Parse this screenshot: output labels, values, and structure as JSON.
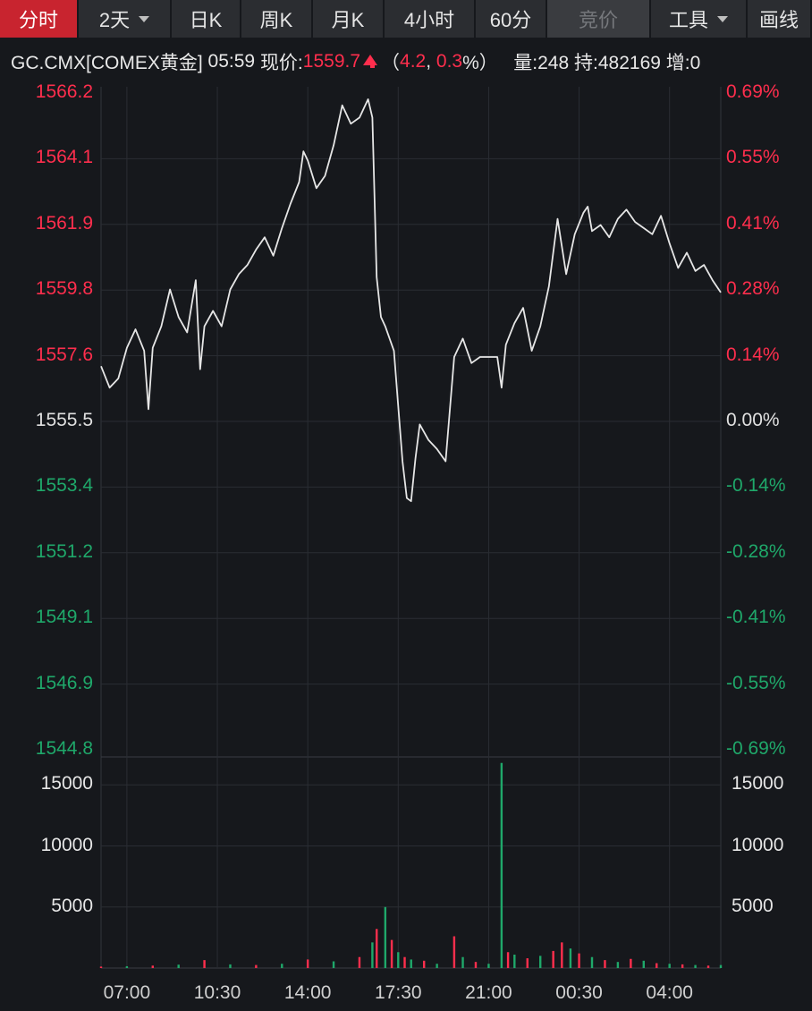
{
  "toolbar": {
    "tabs": [
      {
        "label": "分时",
        "state": "active",
        "width": 88
      },
      {
        "label": "2天",
        "state": "normal",
        "dropdown": true,
        "width": 104
      },
      {
        "label": "日K",
        "state": "normal",
        "width": 78
      },
      {
        "label": "周K",
        "state": "normal",
        "width": 80
      },
      {
        "label": "月K",
        "state": "normal",
        "width": 80
      },
      {
        "label": "4小时",
        "state": "normal",
        "width": 102
      },
      {
        "label": "60分",
        "state": "normal",
        "width": 80
      },
      {
        "label": "竞价",
        "state": "disabled",
        "width": 116
      },
      {
        "label": "工具",
        "state": "normal",
        "dropdown": true,
        "width": 108
      },
      {
        "label": "画线",
        "state": "normal",
        "width": 72
      }
    ]
  },
  "info": {
    "symbol": "GC.CMX[COMEX黄金]",
    "time": "05:59",
    "price_label": "现价:",
    "price": "1559.7",
    "change": "4.2",
    "change_pct": "0.3",
    "volume": "量:248",
    "hold": "持:482169",
    "increase": "增:0"
  },
  "colors": {
    "up": "#ff2e4d",
    "down": "#1fa86a",
    "flat": "#e0e0e0",
    "line": "#e6e6e6",
    "background": "#16181c",
    "grid": "#2a2d33"
  },
  "chart_data": {
    "type": "line",
    "title": "",
    "prev_close": 1555.5,
    "y_axis": {
      "min": 1544.8,
      "max": 1566.2,
      "ticks": [
        "1566.2",
        "1564.1",
        "1561.9",
        "1559.8",
        "1557.6",
        "1555.5",
        "1553.4",
        "1551.2",
        "1549.1",
        "1546.9",
        "1544.8"
      ],
      "pct_ticks": [
        "0.69%",
        "0.55%",
        "0.41%",
        "0.28%",
        "0.14%",
        "0.00%",
        "-0.14%",
        "-0.28%",
        "-0.41%",
        "-0.55%",
        "-0.69%"
      ]
    },
    "x_axis": {
      "ticks": [
        "07:00",
        "10:30",
        "14:00",
        "17:30",
        "21:00",
        "00:30",
        "04:00"
      ]
    },
    "price_series": [
      [
        "06:00",
        1557.3
      ],
      [
        "06:20",
        1556.6
      ],
      [
        "06:40",
        1556.9
      ],
      [
        "07:00",
        1557.9
      ],
      [
        "07:20",
        1558.5
      ],
      [
        "07:40",
        1557.8
      ],
      [
        "07:50",
        1555.9
      ],
      [
        "08:00",
        1557.9
      ],
      [
        "08:20",
        1558.6
      ],
      [
        "08:40",
        1559.8
      ],
      [
        "09:00",
        1558.9
      ],
      [
        "09:20",
        1558.4
      ],
      [
        "09:40",
        1560.1
      ],
      [
        "09:50",
        1557.2
      ],
      [
        "10:00",
        1558.6
      ],
      [
        "10:20",
        1559.1
      ],
      [
        "10:40",
        1558.6
      ],
      [
        "11:00",
        1559.8
      ],
      [
        "11:20",
        1560.3
      ],
      [
        "11:40",
        1560.6
      ],
      [
        "12:00",
        1561.1
      ],
      [
        "12:20",
        1561.5
      ],
      [
        "12:40",
        1560.9
      ],
      [
        "13:00",
        1561.8
      ],
      [
        "13:20",
        1562.6
      ],
      [
        "13:40",
        1563.3
      ],
      [
        "13:50",
        1564.3
      ],
      [
        "14:00",
        1564.0
      ],
      [
        "14:20",
        1563.1
      ],
      [
        "14:40",
        1563.5
      ],
      [
        "15:00",
        1564.5
      ],
      [
        "15:20",
        1565.8
      ],
      [
        "15:40",
        1565.2
      ],
      [
        "16:00",
        1565.4
      ],
      [
        "16:20",
        1566.0
      ],
      [
        "16:30",
        1565.4
      ],
      [
        "16:40",
        1560.2
      ],
      [
        "16:50",
        1558.9
      ],
      [
        "17:00",
        1558.6
      ],
      [
        "17:20",
        1557.8
      ],
      [
        "17:30",
        1556.0
      ],
      [
        "17:40",
        1554.2
      ],
      [
        "17:50",
        1553.0
      ],
      [
        "18:00",
        1552.9
      ],
      [
        "18:10",
        1554.3
      ],
      [
        "18:20",
        1555.4
      ],
      [
        "18:40",
        1554.9
      ],
      [
        "19:00",
        1554.6
      ],
      [
        "19:20",
        1554.2
      ],
      [
        "19:40",
        1557.6
      ],
      [
        "20:00",
        1558.2
      ],
      [
        "20:20",
        1557.4
      ],
      [
        "20:40",
        1557.6
      ],
      [
        "21:00",
        1557.6
      ],
      [
        "21:20",
        1557.6
      ],
      [
        "21:30",
        1556.6
      ],
      [
        "21:40",
        1558.0
      ],
      [
        "22:00",
        1558.7
      ],
      [
        "22:20",
        1559.2
      ],
      [
        "22:40",
        1557.8
      ],
      [
        "23:00",
        1558.6
      ],
      [
        "23:20",
        1559.9
      ],
      [
        "23:40",
        1562.1
      ],
      [
        "00:00",
        1560.3
      ],
      [
        "00:20",
        1561.6
      ],
      [
        "00:40",
        1562.3
      ],
      [
        "00:50",
        1562.5
      ],
      [
        "01:00",
        1561.7
      ],
      [
        "01:20",
        1561.9
      ],
      [
        "01:40",
        1561.5
      ],
      [
        "02:00",
        1562.1
      ],
      [
        "02:20",
        1562.4
      ],
      [
        "02:40",
        1562.0
      ],
      [
        "03:00",
        1561.8
      ],
      [
        "03:20",
        1561.6
      ],
      [
        "03:40",
        1562.2
      ],
      [
        "04:00",
        1561.3
      ],
      [
        "04:20",
        1560.5
      ],
      [
        "04:40",
        1561.0
      ],
      [
        "05:00",
        1560.4
      ],
      [
        "05:20",
        1560.6
      ],
      [
        "05:40",
        1560.1
      ],
      [
        "05:59",
        1559.7
      ]
    ],
    "volume_axis": {
      "min": 0,
      "max": 17000,
      "ticks": [
        "15000",
        "10000",
        "5000"
      ]
    },
    "volume_series": [
      [
        "06:00",
        120,
        "up"
      ],
      [
        "07:00",
        150,
        "down"
      ],
      [
        "08:00",
        200,
        "up"
      ],
      [
        "09:00",
        280,
        "down"
      ],
      [
        "10:00",
        650,
        "up"
      ],
      [
        "11:00",
        300,
        "down"
      ],
      [
        "12:00",
        250,
        "up"
      ],
      [
        "13:00",
        350,
        "down"
      ],
      [
        "14:00",
        700,
        "up"
      ],
      [
        "15:00",
        550,
        "down"
      ],
      [
        "16:00",
        900,
        "up"
      ],
      [
        "16:30",
        2100,
        "down"
      ],
      [
        "16:40",
        3200,
        "up"
      ],
      [
        "17:00",
        5000,
        "down"
      ],
      [
        "17:15",
        2300,
        "up"
      ],
      [
        "17:30",
        1300,
        "down"
      ],
      [
        "17:45",
        900,
        "up"
      ],
      [
        "18:00",
        700,
        "down"
      ],
      [
        "18:30",
        600,
        "up"
      ],
      [
        "19:00",
        350,
        "down"
      ],
      [
        "19:40",
        2600,
        "up"
      ],
      [
        "20:00",
        900,
        "down"
      ],
      [
        "20:30",
        500,
        "up"
      ],
      [
        "21:00",
        350,
        "down"
      ],
      [
        "21:30",
        16800,
        "down"
      ],
      [
        "21:45",
        1300,
        "up"
      ],
      [
        "22:00",
        1100,
        "down"
      ],
      [
        "22:30",
        800,
        "up"
      ],
      [
        "23:00",
        1000,
        "down"
      ],
      [
        "23:30",
        1400,
        "up"
      ],
      [
        "23:50",
        2100,
        "up"
      ],
      [
        "00:10",
        1600,
        "down"
      ],
      [
        "00:30",
        1200,
        "up"
      ],
      [
        "01:00",
        900,
        "down"
      ],
      [
        "01:30",
        650,
        "up"
      ],
      [
        "02:00",
        500,
        "down"
      ],
      [
        "02:30",
        750,
        "up"
      ],
      [
        "03:00",
        600,
        "down"
      ],
      [
        "03:30",
        400,
        "up"
      ],
      [
        "04:00",
        350,
        "down"
      ],
      [
        "04:30",
        300,
        "up"
      ],
      [
        "05:00",
        250,
        "down"
      ],
      [
        "05:30",
        200,
        "up"
      ],
      [
        "05:59",
        248,
        "down"
      ]
    ]
  }
}
